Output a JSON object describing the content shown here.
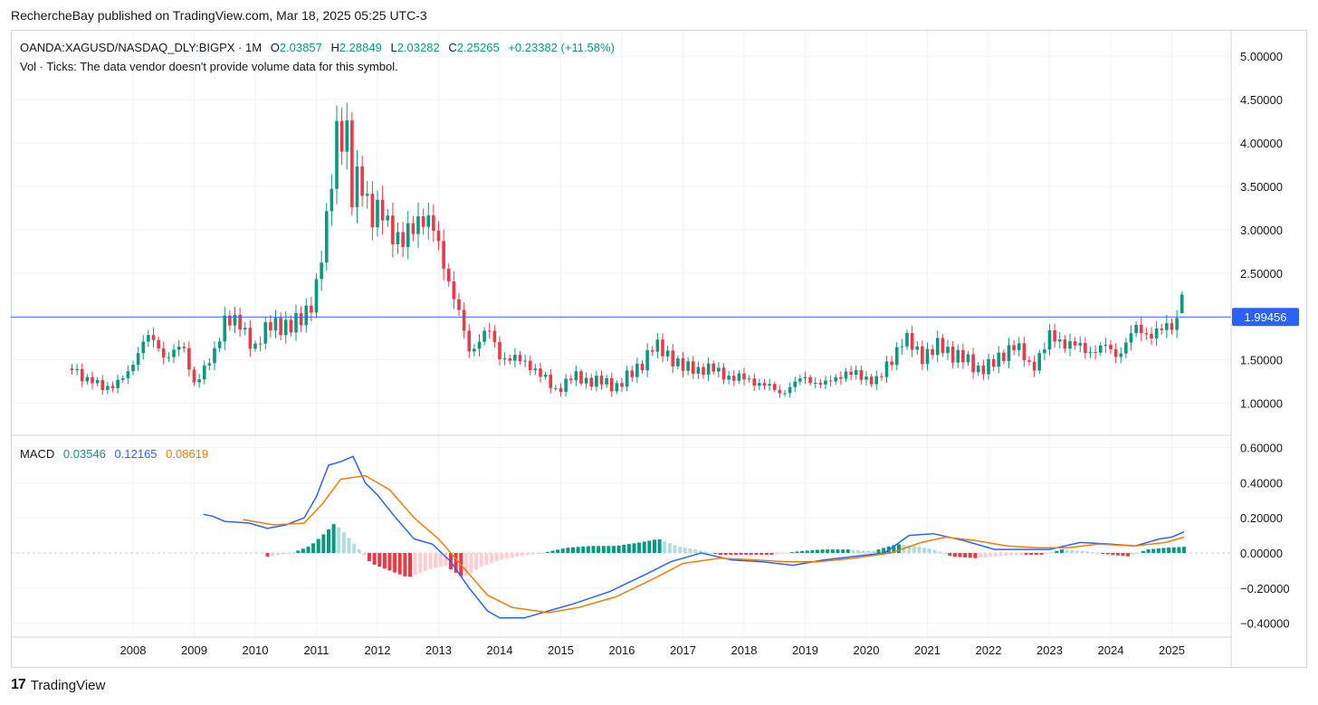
{
  "header": {
    "published_line": "RechercheBay published on TradingView.com, Mar 18, 2025 05:25 UTC-3"
  },
  "legend": {
    "symbol": "OANDA:XAGUSD/NASDAQ_DLY:BIGPX · 1M",
    "o_label": "O",
    "o_value": "2.03857",
    "h_label": "H",
    "h_value": "2.28849",
    "l_label": "L",
    "l_value": "2.03282",
    "c_label": "C",
    "c_value": "2.25265",
    "change": "+0.23382 (+11.58%)",
    "vol_note": "Vol · Ticks: The data vendor doesn't provide volume data for this symbol."
  },
  "macd_legend": {
    "label": "MACD",
    "hist_value": "0.03546",
    "macd_value": "0.12165",
    "signal_value": "0.08619"
  },
  "footer": {
    "brand": "TradingView",
    "logo_text": "17"
  },
  "colors": {
    "up": "#089981",
    "down": "#f23645",
    "up_light": "#b2dfdb",
    "down_light": "#ffcdd2",
    "macd_line": "#2962ff",
    "signal_line": "#f57c00",
    "hline": "#2962ff",
    "grid": "#f0f3fa"
  },
  "chart_data": [
    {
      "type": "candlestick",
      "title": "OANDA:XAGUSD/NASDAQ_DLY:BIGPX",
      "interval": "1M",
      "scale": "linear",
      "ylim": [
        0.72,
        5.22
      ],
      "y_ticks": [
        "5.00000",
        "4.50000",
        "4.00000",
        "3.50000",
        "3.00000",
        "2.50000",
        "1.50000",
        "1.00000"
      ],
      "x_ticks": [
        "2008",
        "2009",
        "2010",
        "2011",
        "2012",
        "2013",
        "2014",
        "2015",
        "2016",
        "2017",
        "2018",
        "2019",
        "2020",
        "2021",
        "2022",
        "2023",
        "2024",
        "2025"
      ],
      "x_range": [
        2006.05,
        2026.9
      ],
      "horizontal_line": {
        "value": 1.99456,
        "label": "1.99456"
      },
      "series": [
        {
          "name": "close",
          "points": [
            [
              2007.0,
              1.4
            ],
            [
              2007.5,
              1.17
            ],
            [
              2007.9,
              1.3
            ],
            [
              2008.2,
              1.8
            ],
            [
              2008.5,
              1.55
            ],
            [
              2008.8,
              1.65
            ],
            [
              2009.0,
              1.25
            ],
            [
              2009.3,
              1.5
            ],
            [
              2009.5,
              2.0
            ],
            [
              2009.8,
              1.85
            ],
            [
              2010.0,
              1.65
            ],
            [
              2010.3,
              1.95
            ],
            [
              2010.6,
              1.85
            ],
            [
              2010.9,
              2.15
            ],
            [
              2011.0,
              2.3
            ],
            [
              2011.2,
              3.2
            ],
            [
              2011.3,
              4.2
            ],
            [
              2011.5,
              4.0
            ],
            [
              2011.6,
              3.2
            ],
            [
              2011.7,
              3.8
            ],
            [
              2011.9,
              3.1
            ],
            [
              2012.1,
              3.2
            ],
            [
              2012.4,
              2.8
            ],
            [
              2012.7,
              3.2
            ],
            [
              2012.9,
              3.0
            ],
            [
              2013.1,
              2.6
            ],
            [
              2013.3,
              2.1
            ],
            [
              2013.5,
              1.6
            ],
            [
              2013.8,
              1.85
            ],
            [
              2014.0,
              1.55
            ],
            [
              2014.5,
              1.45
            ],
            [
              2014.9,
              1.15
            ],
            [
              2015.2,
              1.3
            ],
            [
              2015.6,
              1.25
            ],
            [
              2015.9,
              1.2
            ],
            [
              2016.2,
              1.35
            ],
            [
              2016.5,
              1.65
            ],
            [
              2016.8,
              1.55
            ],
            [
              2017.0,
              1.4
            ],
            [
              2017.4,
              1.4
            ],
            [
              2017.8,
              1.3
            ],
            [
              2018.2,
              1.25
            ],
            [
              2018.6,
              1.12
            ],
            [
              2019.0,
              1.3
            ],
            [
              2019.3,
              1.2
            ],
            [
              2019.6,
              1.35
            ],
            [
              2020.0,
              1.3
            ],
            [
              2020.2,
              1.25
            ],
            [
              2020.6,
              1.75
            ],
            [
              2020.9,
              1.55
            ],
            [
              2021.2,
              1.65
            ],
            [
              2021.5,
              1.55
            ],
            [
              2021.8,
              1.4
            ],
            [
              2022.1,
              1.45
            ],
            [
              2022.4,
              1.7
            ],
            [
              2022.7,
              1.4
            ],
            [
              2023.0,
              1.75
            ],
            [
              2023.3,
              1.7
            ],
            [
              2023.6,
              1.6
            ],
            [
              2023.9,
              1.65
            ],
            [
              2024.1,
              1.55
            ],
            [
              2024.4,
              1.85
            ],
            [
              2024.7,
              1.8
            ],
            [
              2024.9,
              1.85
            ],
            [
              2025.1,
              1.99
            ],
            [
              2025.2,
              2.25
            ]
          ]
        }
      ]
    },
    {
      "type": "macd",
      "ylim": [
        -0.44,
        0.64
      ],
      "y_ticks": [
        "0.60000",
        "0.40000",
        "0.20000",
        "0.00000",
        "−0.20000",
        "−0.40000"
      ],
      "series": [
        {
          "name": "MACD",
          "points": [
            [
              2009.15,
              0.22
            ],
            [
              2009.3,
              0.21
            ],
            [
              2009.5,
              0.18
            ],
            [
              2009.9,
              0.17
            ],
            [
              2010.2,
              0.14
            ],
            [
              2010.5,
              0.16
            ],
            [
              2010.8,
              0.2
            ],
            [
              2011.0,
              0.32
            ],
            [
              2011.2,
              0.5
            ],
            [
              2011.4,
              0.52
            ],
            [
              2011.6,
              0.55
            ],
            [
              2011.8,
              0.4
            ],
            [
              2012.0,
              0.33
            ],
            [
              2012.3,
              0.2
            ],
            [
              2012.6,
              0.08
            ],
            [
              2012.9,
              0.05
            ],
            [
              2013.2,
              -0.05
            ],
            [
              2013.5,
              -0.2
            ],
            [
              2013.8,
              -0.33
            ],
            [
              2014.0,
              -0.37
            ],
            [
              2014.4,
              -0.37
            ],
            [
              2014.8,
              -0.33
            ],
            [
              2015.2,
              -0.29
            ],
            [
              2015.8,
              -0.22
            ],
            [
              2016.4,
              -0.12
            ],
            [
              2016.8,
              -0.05
            ],
            [
              2017.3,
              0.0
            ],
            [
              2017.8,
              -0.04
            ],
            [
              2018.3,
              -0.05
            ],
            [
              2018.8,
              -0.07
            ],
            [
              2019.3,
              -0.04
            ],
            [
              2019.8,
              -0.02
            ],
            [
              2020.3,
              0.0
            ],
            [
              2020.7,
              0.1
            ],
            [
              2021.1,
              0.11
            ],
            [
              2021.6,
              0.07
            ],
            [
              2022.1,
              0.02
            ],
            [
              2022.6,
              0.02
            ],
            [
              2023.0,
              0.02
            ],
            [
              2023.5,
              0.06
            ],
            [
              2024.0,
              0.05
            ],
            [
              2024.4,
              0.04
            ],
            [
              2024.8,
              0.08
            ],
            [
              2025.0,
              0.09
            ],
            [
              2025.2,
              0.12
            ]
          ]
        },
        {
          "name": "Signal",
          "points": [
            [
              2009.8,
              0.19
            ],
            [
              2010.3,
              0.16
            ],
            [
              2010.8,
              0.17
            ],
            [
              2011.1,
              0.28
            ],
            [
              2011.4,
              0.42
            ],
            [
              2011.8,
              0.44
            ],
            [
              2012.2,
              0.36
            ],
            [
              2012.6,
              0.2
            ],
            [
              2013.0,
              0.08
            ],
            [
              2013.4,
              -0.08
            ],
            [
              2013.8,
              -0.24
            ],
            [
              2014.2,
              -0.31
            ],
            [
              2014.8,
              -0.34
            ],
            [
              2015.3,
              -0.31
            ],
            [
              2015.9,
              -0.25
            ],
            [
              2016.5,
              -0.15
            ],
            [
              2017.0,
              -0.06
            ],
            [
              2017.6,
              -0.03
            ],
            [
              2018.2,
              -0.04
            ],
            [
              2018.7,
              -0.05
            ],
            [
              2019.2,
              -0.05
            ],
            [
              2019.8,
              -0.03
            ],
            [
              2020.4,
              0.0
            ],
            [
              2020.9,
              0.06
            ],
            [
              2021.3,
              0.09
            ],
            [
              2021.8,
              0.07
            ],
            [
              2022.3,
              0.04
            ],
            [
              2022.8,
              0.03
            ],
            [
              2023.3,
              0.03
            ],
            [
              2023.8,
              0.05
            ],
            [
              2024.4,
              0.04
            ],
            [
              2024.9,
              0.06
            ],
            [
              2025.2,
              0.09
            ]
          ]
        },
        {
          "name": "Histogram",
          "bars": [
            [
              2010.2,
              -0.02
            ],
            [
              2010.6,
              0.0
            ],
            [
              2010.9,
              0.04
            ],
            [
              2011.1,
              0.1
            ],
            [
              2011.3,
              0.17
            ],
            [
              2011.5,
              0.1
            ],
            [
              2011.7,
              0.02
            ],
            [
              2011.9,
              -0.06
            ],
            [
              2012.2,
              -0.1
            ],
            [
              2012.5,
              -0.14
            ],
            [
              2012.8,
              -0.1
            ],
            [
              2013.1,
              -0.07
            ],
            [
              2013.4,
              -0.14
            ],
            [
              2013.7,
              -0.08
            ],
            [
              2014.0,
              -0.04
            ],
            [
              2014.3,
              -0.02
            ],
            [
              2014.7,
              0.0
            ],
            [
              2015.1,
              0.03
            ],
            [
              2015.5,
              0.04
            ],
            [
              2015.9,
              0.04
            ],
            [
              2016.3,
              0.06
            ],
            [
              2016.6,
              0.08
            ],
            [
              2016.9,
              0.04
            ],
            [
              2017.2,
              0.02
            ],
            [
              2017.6,
              -0.01
            ],
            [
              2018.0,
              -0.01
            ],
            [
              2018.5,
              -0.01
            ],
            [
              2018.9,
              0.01
            ],
            [
              2019.3,
              0.02
            ],
            [
              2019.7,
              0.02
            ],
            [
              2020.1,
              0.01
            ],
            [
              2020.5,
              0.05
            ],
            [
              2020.8,
              0.04
            ],
            [
              2021.1,
              0.02
            ],
            [
              2021.4,
              -0.02
            ],
            [
              2021.8,
              -0.03
            ],
            [
              2022.1,
              -0.02
            ],
            [
              2022.5,
              -0.01
            ],
            [
              2022.9,
              -0.01
            ],
            [
              2023.2,
              0.02
            ],
            [
              2023.6,
              0.01
            ],
            [
              2024.0,
              -0.01
            ],
            [
              2024.3,
              -0.02
            ],
            [
              2024.6,
              0.02
            ],
            [
              2024.9,
              0.03
            ],
            [
              2025.2,
              0.035
            ]
          ]
        }
      ]
    }
  ]
}
